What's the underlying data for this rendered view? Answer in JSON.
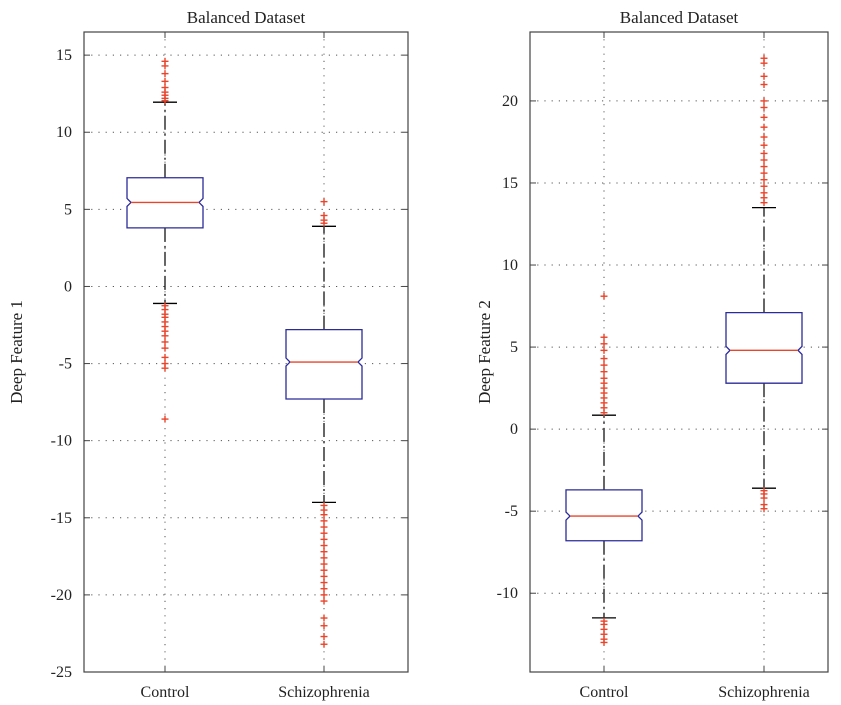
{
  "chart_data": [
    {
      "type": "box",
      "title": "Balanced Dataset",
      "ylabel": "Deep Feature 1",
      "categories": [
        "Control",
        "Schizophrenia"
      ],
      "ylim": [
        -25,
        16.5
      ],
      "yticks": [
        15,
        10,
        5,
        0,
        -5,
        -10,
        -15,
        -20,
        -25
      ],
      "grid": true,
      "boxes": [
        {
          "q1": 3.8,
          "median": 5.45,
          "q3": 7.05,
          "whisker_low": -1.1,
          "whisker_high": 11.95,
          "outliers": [
            12.05,
            12.2,
            12.4,
            12.6,
            12.9,
            13.3,
            13.8,
            14.3,
            14.6,
            -1.25,
            -1.5,
            -1.8,
            -2.0,
            -2.3,
            -2.6,
            -2.9,
            -3.2,
            -3.6,
            -4.0,
            -4.6,
            -5.0,
            -5.3,
            -8.6
          ]
        },
        {
          "q1": -7.3,
          "median": -4.9,
          "q3": -2.8,
          "whisker_low": -14.0,
          "whisker_high": 3.9,
          "outliers": [
            4.1,
            4.3,
            4.6,
            5.5,
            -14.2,
            -14.5,
            -14.8,
            -15.2,
            -15.6,
            -16.0,
            -16.4,
            -16.8,
            -17.2,
            -17.6,
            -18.0,
            -18.4,
            -18.8,
            -19.2,
            -19.6,
            -20.0,
            -20.4,
            -21.5,
            -22.0,
            -22.7,
            -23.2
          ]
        }
      ]
    },
    {
      "type": "box",
      "title": "Balanced Dataset",
      "ylabel": "Deep Feature 2",
      "categories": [
        "Control",
        "Schizophrenia"
      ],
      "ylim": [
        -14.8,
        24.2
      ],
      "yticks": [
        20,
        15,
        10,
        5,
        0,
        -5,
        -10
      ],
      "grid": true,
      "boxes": [
        {
          "q1": -6.8,
          "median": -5.3,
          "q3": -3.7,
          "whisker_low": -11.5,
          "whisker_high": 0.85,
          "outliers": [
            1.0,
            1.3,
            1.6,
            1.9,
            2.2,
            2.5,
            2.8,
            3.1,
            3.5,
            3.9,
            4.3,
            4.8,
            5.2,
            5.6,
            8.1,
            -11.7,
            -11.9,
            -12.2,
            -12.5,
            -12.8,
            -13.0
          ]
        },
        {
          "q1": 2.8,
          "median": 4.8,
          "q3": 7.1,
          "whisker_low": -3.6,
          "whisker_high": 13.5,
          "outliers": [
            13.8,
            14.1,
            14.4,
            14.8,
            15.2,
            15.6,
            16.0,
            16.4,
            16.8,
            17.3,
            17.8,
            18.4,
            19.0,
            19.6,
            20.0,
            21.0,
            21.5,
            22.3,
            22.6,
            -3.75,
            -3.95,
            -4.2,
            -4.6,
            -4.85
          ]
        }
      ]
    }
  ]
}
